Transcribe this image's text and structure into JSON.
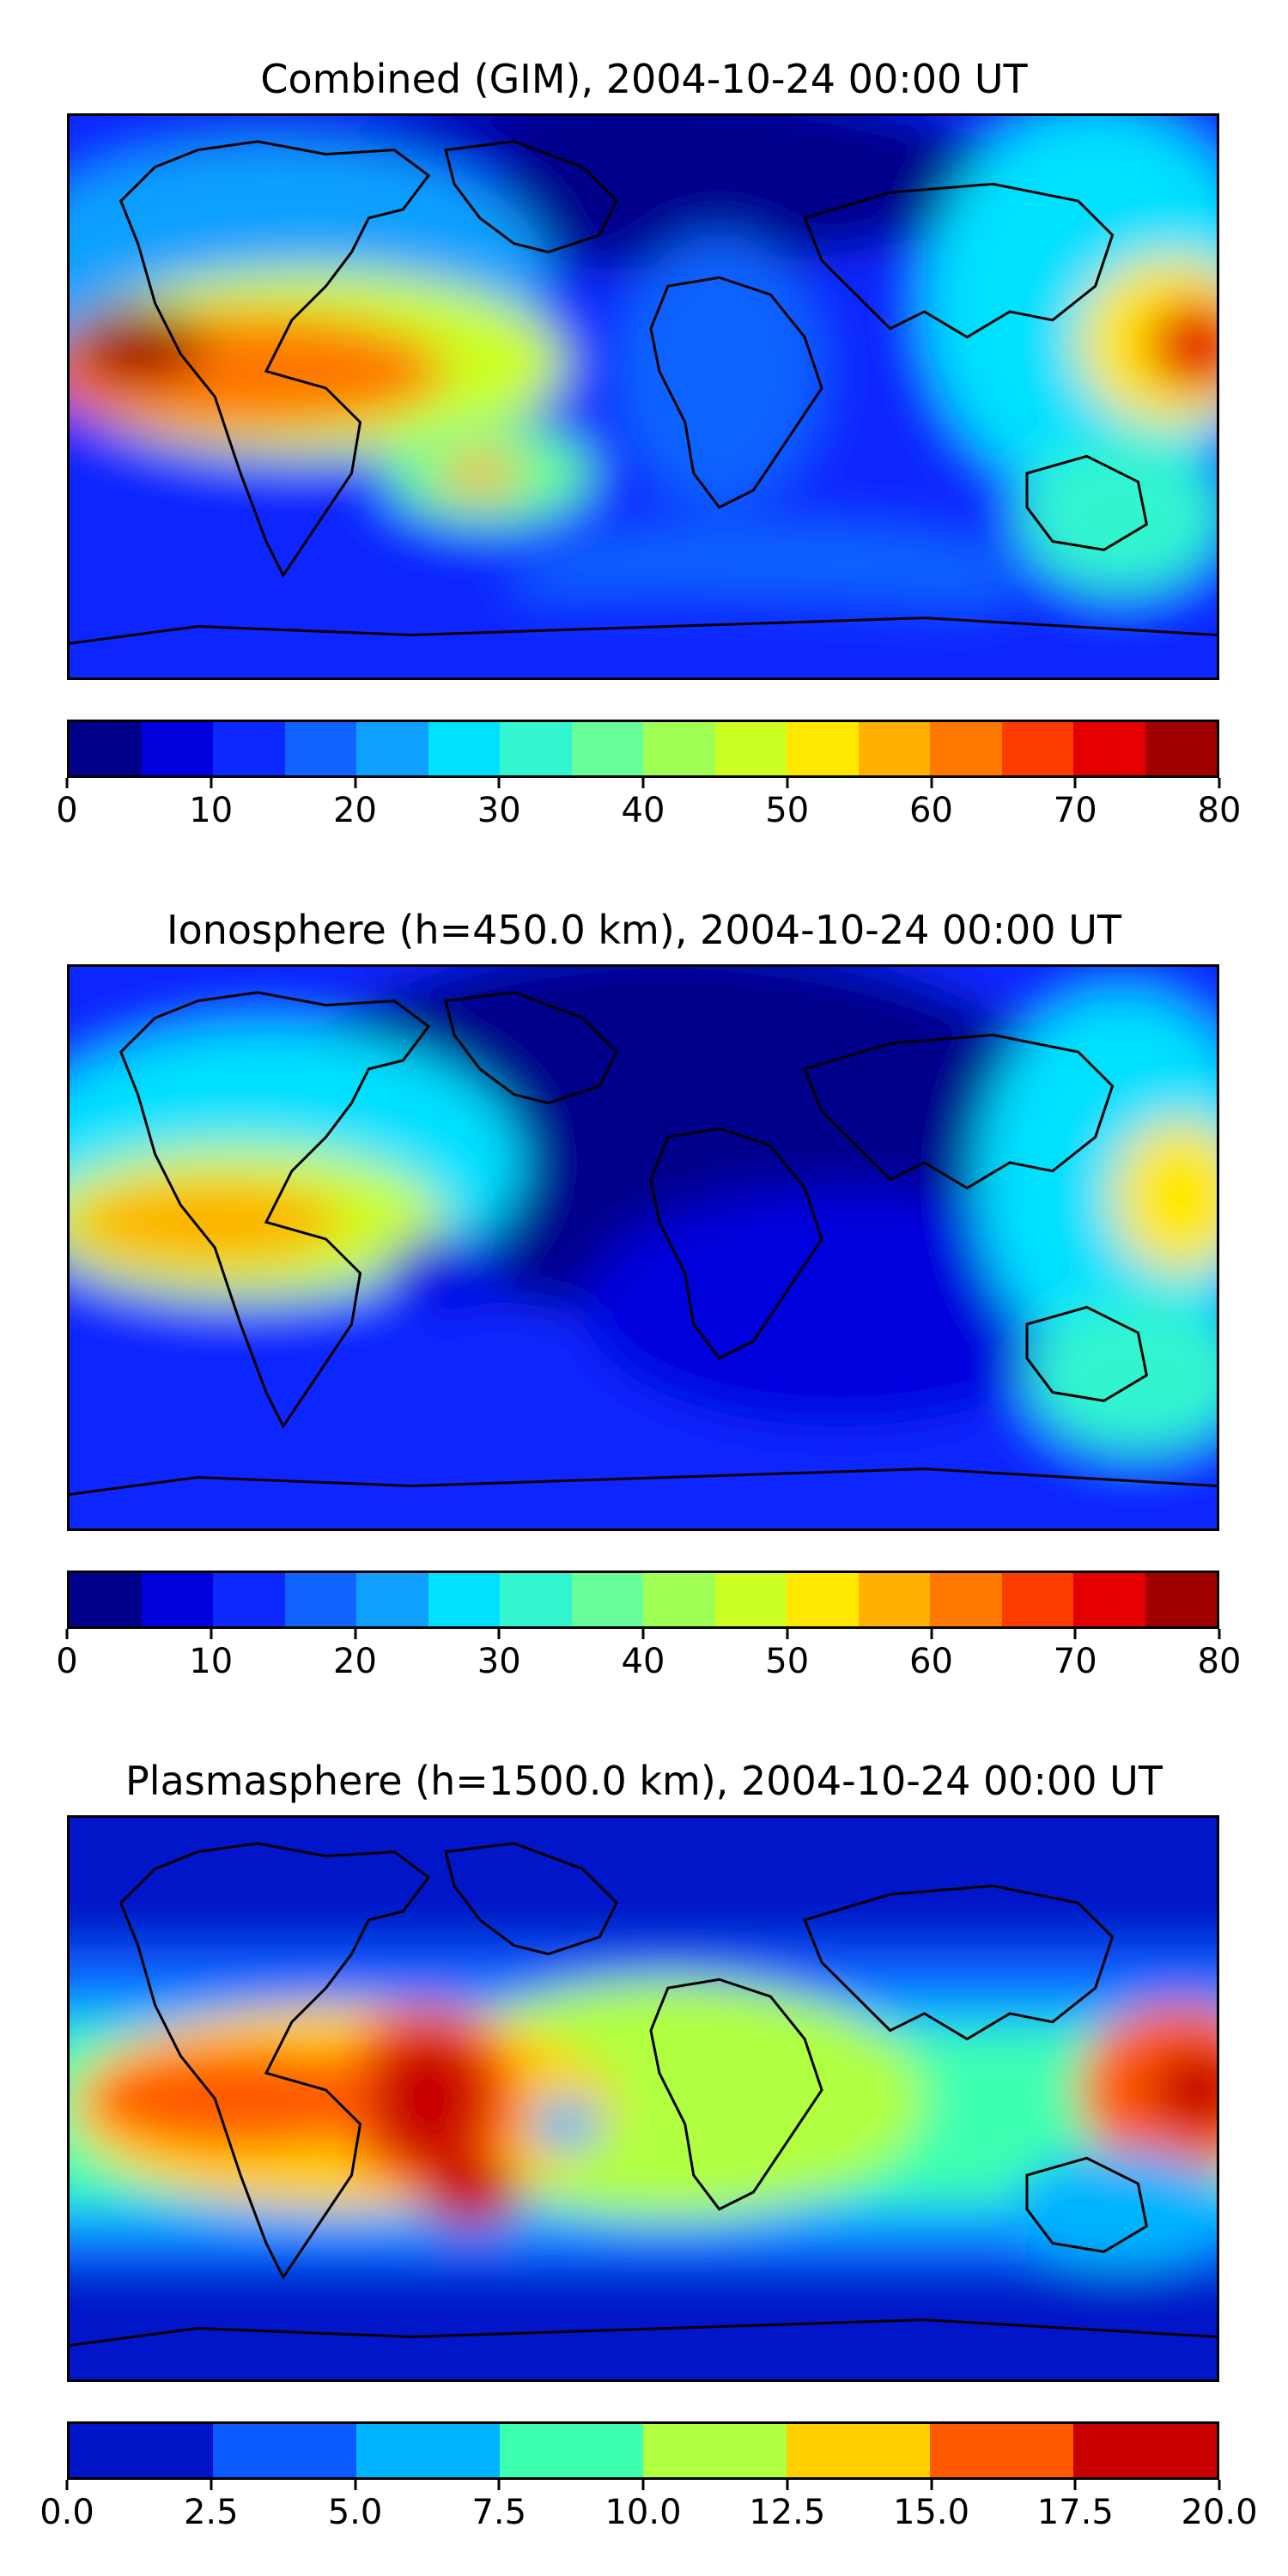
{
  "panels": [
    {
      "title": "Combined (GIM), 2004-10-24 00:00 UT",
      "colorbar": {
        "colors": [
          "#00008b",
          "#0000dd",
          "#0a28ff",
          "#0f64ff",
          "#0fa0ff",
          "#00e0ff",
          "#33f5d0",
          "#66ff99",
          "#a0ff55",
          "#ccff22",
          "#ffe800",
          "#ffb000",
          "#ff7800",
          "#ff3c00",
          "#e40000",
          "#a00000"
        ],
        "ticks": [
          "0",
          "10",
          "20",
          "30",
          "40",
          "50",
          "60",
          "70",
          "80"
        ]
      }
    },
    {
      "title": "Ionosphere  (h=450.0 km), 2004-10-24 00:00 UT",
      "colorbar": {
        "colors": [
          "#00008b",
          "#0000dd",
          "#0a28ff",
          "#0f64ff",
          "#0fa0ff",
          "#00e0ff",
          "#33f5d0",
          "#66ff99",
          "#a0ff55",
          "#ccff22",
          "#ffe800",
          "#ffb000",
          "#ff7800",
          "#ff3c00",
          "#e40000",
          "#a00000"
        ],
        "ticks": [
          "0",
          "10",
          "20",
          "30",
          "40",
          "50",
          "60",
          "70",
          "80"
        ]
      }
    },
    {
      "title": "Plasmasphere (h=1500.0 km), 2004-10-24 00:00 UT",
      "colorbar": {
        "colors": [
          "#0014c8",
          "#0a5aff",
          "#00b4ff",
          "#3cffb0",
          "#b0ff40",
          "#ffd000",
          "#ff5a00",
          "#c80000"
        ],
        "ticks": [
          "0.0",
          "2.5",
          "5.0",
          "7.5",
          "10.0",
          "12.5",
          "15.0",
          "17.5",
          "20.0"
        ]
      }
    }
  ]
}
